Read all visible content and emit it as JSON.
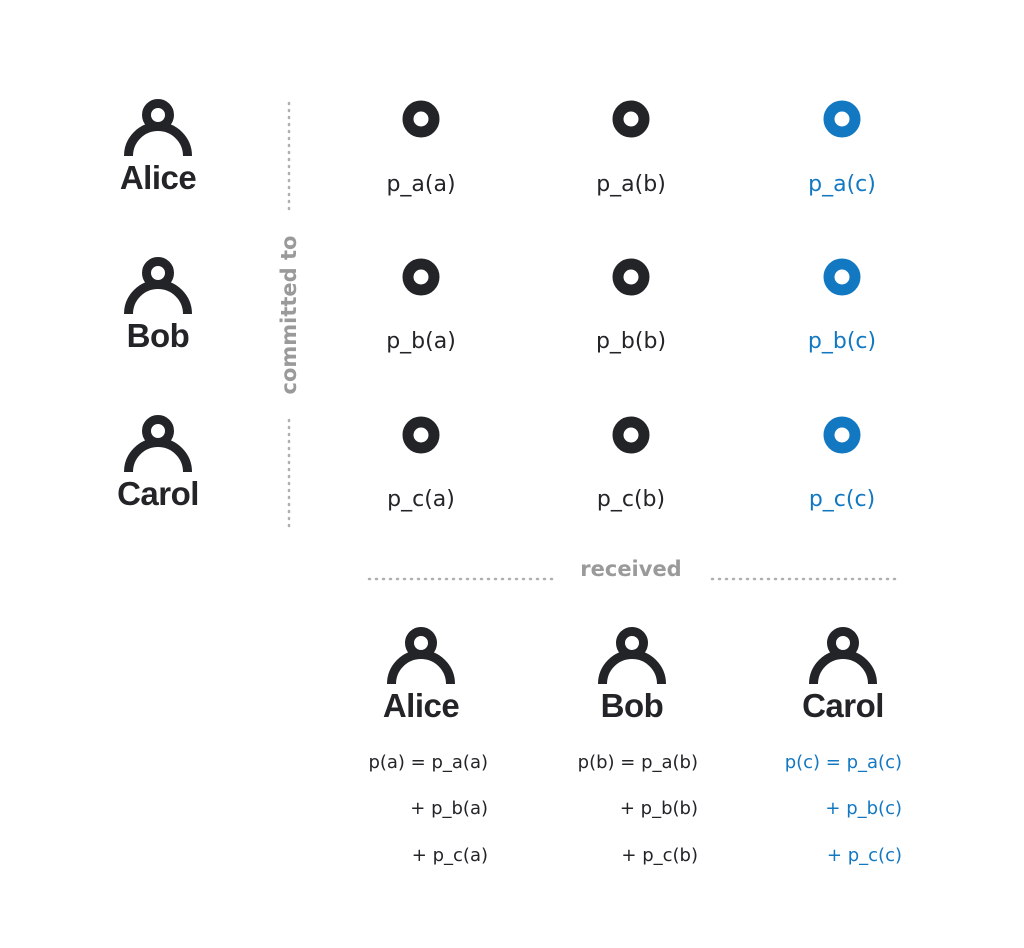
{
  "senders": [
    "Alice",
    "Bob",
    "Carol"
  ],
  "committed_label": "committed to",
  "received_label": "received",
  "shares": [
    [
      "p_a(a)",
      "p_a(b)",
      "p_a(c)"
    ],
    [
      "p_b(a)",
      "p_b(b)",
      "p_b(c)"
    ],
    [
      "p_c(a)",
      "p_c(b)",
      "p_c(c)"
    ]
  ],
  "receivers": [
    {
      "name": "Alice",
      "line1": "p(a) = p_a(a)",
      "line2": "+ p_b(a)",
      "line3": "+ p_c(a)"
    },
    {
      "name": "Bob",
      "line1": "p(b) = p_a(b)",
      "line2": "+ p_b(b)",
      "line3": "+ p_c(b)"
    },
    {
      "name": "Carol",
      "line1": "p(c) = p_a(c)",
      "line2": "+ p_b(c)",
      "line3": "+ p_c(c)"
    }
  ],
  "colors": {
    "dark": "#222428",
    "highlight": "#1378c2",
    "muted": "#9a9a9a"
  }
}
